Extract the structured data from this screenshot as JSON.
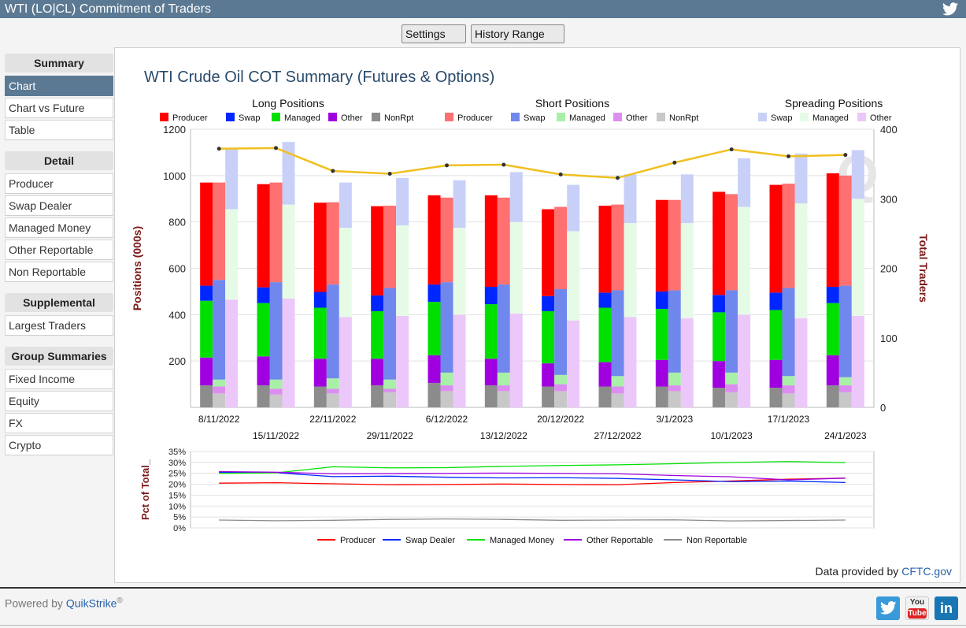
{
  "header": {
    "title": "WTI (LO|CL) Commitment of Traders",
    "icon": "twitter-icon"
  },
  "toolbar": {
    "settings_label": "Settings",
    "history_label": "History Range"
  },
  "sidebar": {
    "summary_heading": "Summary",
    "summary_items": [
      "Chart",
      "Chart vs Future",
      "Table"
    ],
    "detail_heading": "Detail",
    "detail_items": [
      "Producer",
      "Swap Dealer",
      "Managed Money",
      "Other Reportable",
      "Non Reportable"
    ],
    "supplemental_heading": "Supplemental",
    "supplemental_items": [
      "Largest Traders"
    ],
    "group_heading": "Group Summaries",
    "group_items": [
      "Fixed Income",
      "Equity",
      "FX",
      "Crypto"
    ],
    "active_item": "Chart"
  },
  "chart_data": [
    {
      "type": "bar",
      "stacked": true,
      "title": "WTI Crude Oil COT Summary (Futures & Options)",
      "ylabel": "Positions (000s)",
      "y2label": "Total Traders",
      "ylim": [
        0,
        1200
      ],
      "y2lim": [
        0,
        400
      ],
      "yticks": [
        200,
        400,
        600,
        800,
        1000,
        1200
      ],
      "y2ticks": [
        0,
        100,
        200,
        300,
        400
      ],
      "grid": true,
      "categories": [
        "8/11/2022",
        "15/11/2022",
        "22/11/2022",
        "29/11/2022",
        "6/12/2022",
        "13/12/2022",
        "20/12/2022",
        "27/12/2022",
        "3/1/2023",
        "10/1/2023",
        "17/1/2023",
        "24/1/2023"
      ],
      "legend_groups": [
        {
          "title": "Long Positions",
          "items": [
            {
              "name": "Producer",
              "color": "#ff0000"
            },
            {
              "name": "Swap",
              "color": "#0026ff"
            },
            {
              "name": "Managed",
              "color": "#00e000"
            },
            {
              "name": "Other",
              "color": "#a000e0"
            },
            {
              "name": "NonRpt",
              "color": "#8c8c8c"
            }
          ]
        },
        {
          "title": "Short Positions",
          "items": [
            {
              "name": "Producer",
              "color": "#ff7070"
            },
            {
              "name": "Swap",
              "color": "#7088ee"
            },
            {
              "name": "Managed",
              "color": "#a8f0a8"
            },
            {
              "name": "Other",
              "color": "#dc8ef0"
            },
            {
              "name": "NonRpt",
              "color": "#c8c8c8"
            }
          ]
        },
        {
          "title": "Spreading Positions",
          "items": [
            {
              "name": "Swap",
              "color": "#c8d0f8"
            },
            {
              "name": "Managed",
              "color": "#e6fbe6"
            },
            {
              "name": "Other",
              "color": "#ecc8fa"
            }
          ]
        }
      ],
      "long": {
        "Producer": [
          445,
          445,
          385,
          385,
          385,
          395,
          375,
          375,
          395,
          445,
          465,
          490
        ],
        "Swap": [
          65,
          68,
          68,
          68,
          75,
          75,
          65,
          65,
          75,
          75,
          75,
          70
        ],
        "Managed": [
          245,
          230,
          220,
          205,
          230,
          235,
          225,
          235,
          220,
          210,
          215,
          225
        ],
        "Other": [
          120,
          125,
          120,
          115,
          120,
          115,
          100,
          105,
          115,
          115,
          120,
          130
        ],
        "NonRpt": [
          95,
          95,
          90,
          95,
          105,
          95,
          90,
          90,
          90,
          85,
          85,
          95
        ]
      },
      "short": {
        "Producer": [
          420,
          430,
          355,
          355,
          365,
          375,
          355,
          370,
          390,
          415,
          450,
          475
        ],
        "Swap": [
          430,
          420,
          405,
          395,
          390,
          380,
          370,
          370,
          355,
          355,
          380,
          395
        ],
        "Managed": [
          30,
          40,
          45,
          40,
          55,
          55,
          40,
          45,
          55,
          50,
          40,
          35
        ],
        "Other": [
          30,
          25,
          20,
          15,
          25,
          25,
          30,
          30,
          25,
          35,
          35,
          30
        ],
        "NonRpt": [
          60,
          55,
          60,
          65,
          70,
          70,
          70,
          60,
          70,
          65,
          60,
          65
        ]
      },
      "spreading": {
        "Other": [
          465,
          470,
          390,
          395,
          400,
          405,
          375,
          390,
          385,
          400,
          385,
          395
        ],
        "Managed": [
          390,
          405,
          385,
          390,
          375,
          395,
          385,
          405,
          410,
          465,
          495,
          505
        ],
        "Swap": [
          265,
          270,
          195,
          205,
          205,
          215,
          200,
          210,
          210,
          210,
          215,
          210
        ]
      },
      "total_traders": [
        372,
        373,
        340,
        336,
        348,
        349,
        335,
        330,
        352,
        371,
        361,
        363
      ],
      "total_traders_color": "#f0c020",
      "watermark": "Q"
    },
    {
      "type": "line",
      "ylabel": "Pct of Total_",
      "ylim": [
        0,
        35
      ],
      "yticks": [
        "0%",
        "5%",
        "10%",
        "15%",
        "20%",
        "25%",
        "30%",
        "35%"
      ],
      "grid": true,
      "series": [
        {
          "name": "Producer",
          "color": "#ff0000",
          "values": [
            20.5,
            20.7,
            20.2,
            19.8,
            19.9,
            20.1,
            19.9,
            19.8,
            20.8,
            21.5,
            22.3,
            22.8
          ]
        },
        {
          "name": "Swap Dealer",
          "color": "#0026ff",
          "values": [
            25.5,
            25.3,
            23.5,
            23.7,
            23.2,
            22.9,
            23.0,
            22.7,
            22.0,
            21.2,
            21.5,
            20.8
          ]
        },
        {
          "name": "Managed Money",
          "color": "#00e000",
          "values": [
            25.0,
            25.2,
            28.0,
            27.5,
            27.6,
            28.2,
            28.6,
            28.9,
            29.4,
            30.0,
            30.4,
            29.9
          ]
        },
        {
          "name": "Other Reportable",
          "color": "#a000e0",
          "values": [
            25.8,
            25.5,
            24.8,
            24.9,
            25.0,
            25.1,
            25.0,
            24.8,
            24.0,
            23.4,
            22.0,
            22.8
          ]
        },
        {
          "name": "Non Reportable",
          "color": "#8c8c8c",
          "values": [
            3.6,
            3.3,
            3.5,
            3.9,
            4.1,
            3.9,
            3.5,
            3.6,
            3.7,
            3.2,
            3.4,
            3.6
          ]
        }
      ]
    }
  ],
  "credit": {
    "prefix": "Data provided by ",
    "link": "CFTC.gov"
  },
  "footer": {
    "powered_prefix": "Powered by ",
    "brand": "QuikStrike",
    "reg": "®",
    "social": [
      "twitter-icon",
      "youtube-icon",
      "linkedin-icon"
    ],
    "youtube_top": "You",
    "youtube_bottom": "Tube",
    "linkedin_text": "in"
  }
}
